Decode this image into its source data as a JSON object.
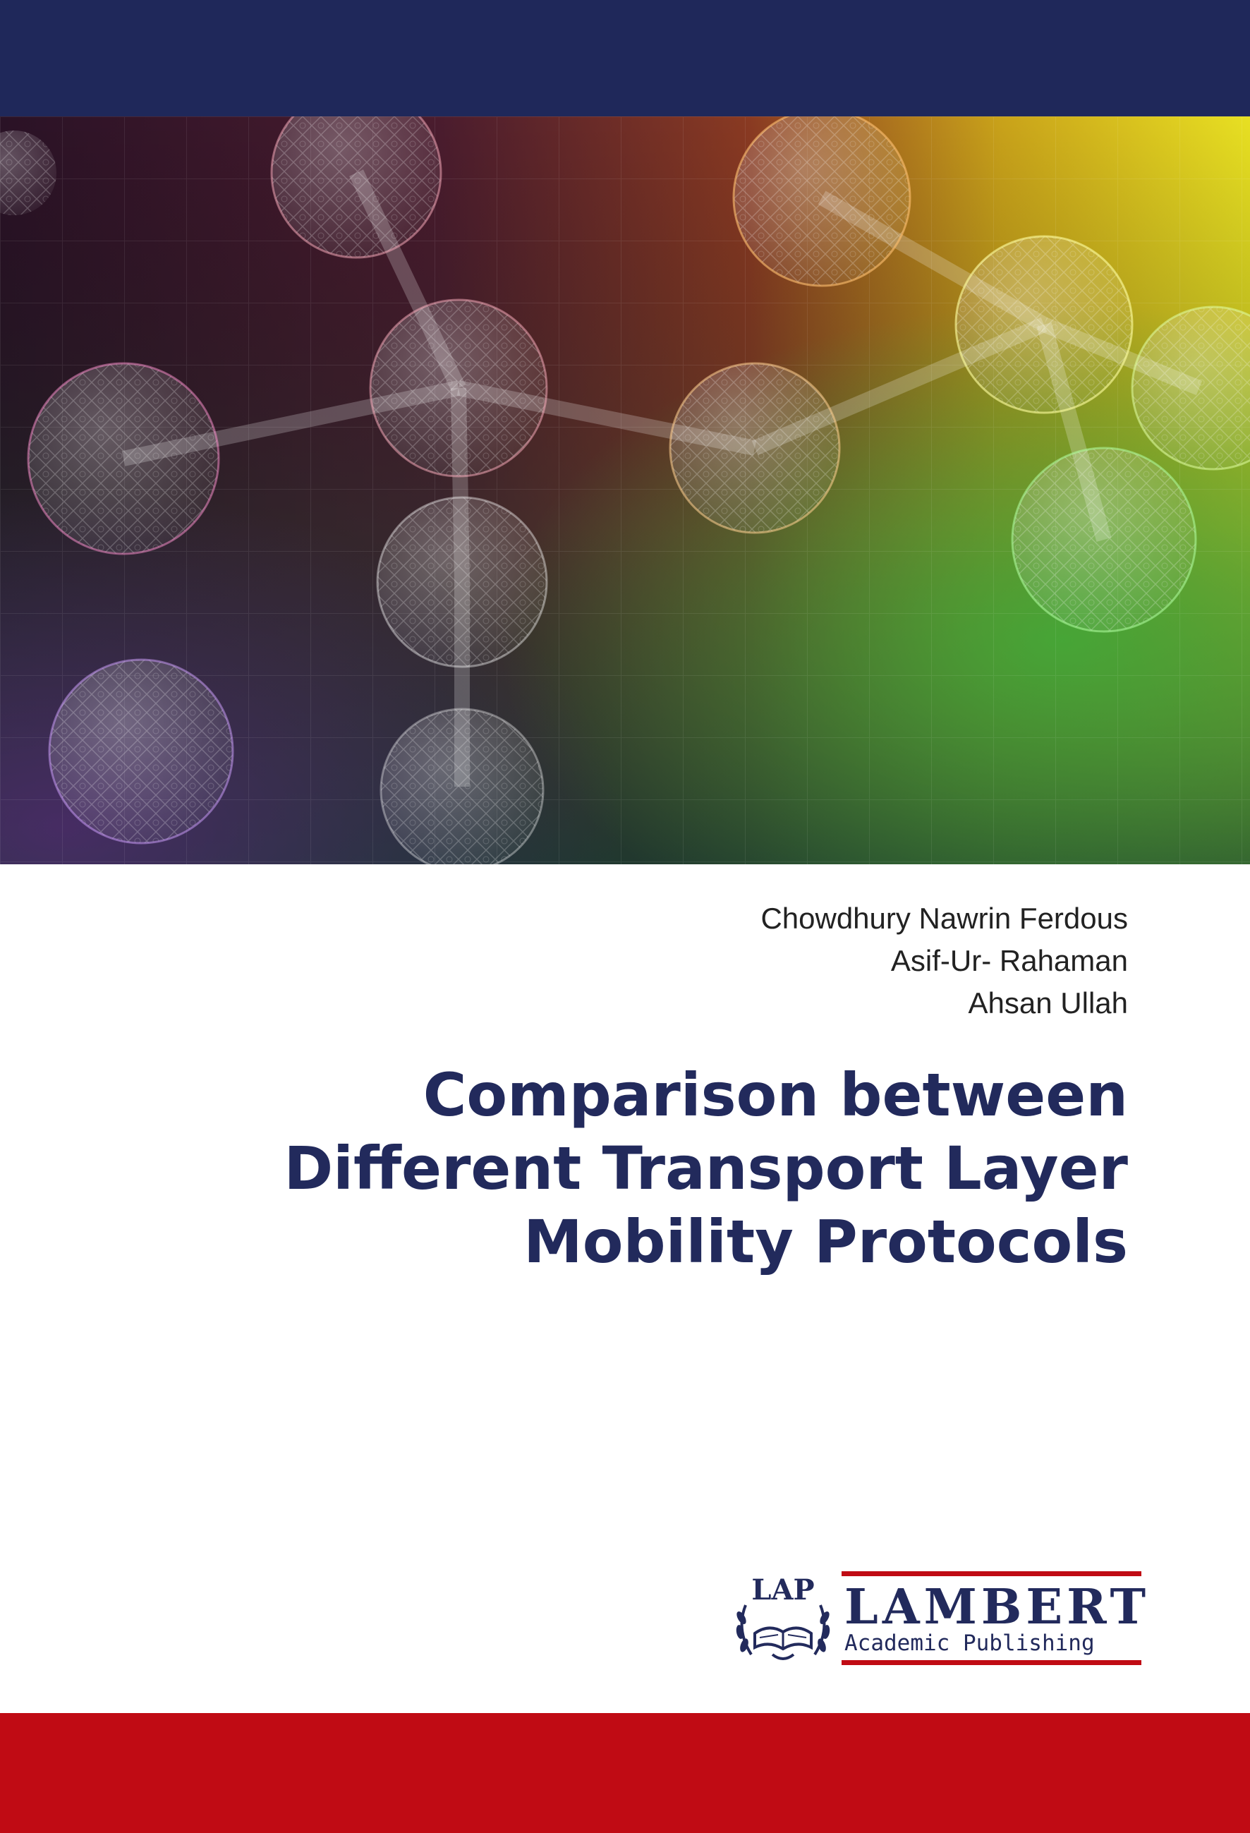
{
  "cover": {
    "colors": {
      "top_band": "#1f285a",
      "bottom_band": "#c00b14",
      "title": "#222a5c",
      "author_text": "#222222"
    },
    "art": {
      "description_icon": "molecule-network-art"
    },
    "authors": [
      "Chowdhury Nawrin Ferdous",
      "Asif-Ur- Rahaman",
      "Ahsan Ullah"
    ],
    "title_lines": [
      "Comparison between",
      "Different Transport Layer",
      "Mobility Protocols"
    ],
    "publisher": {
      "emblem_text": "LAP",
      "name": "LAMBERT",
      "subtitle": "Academic Publishing",
      "icon": "open-book-laurel-icon"
    }
  }
}
